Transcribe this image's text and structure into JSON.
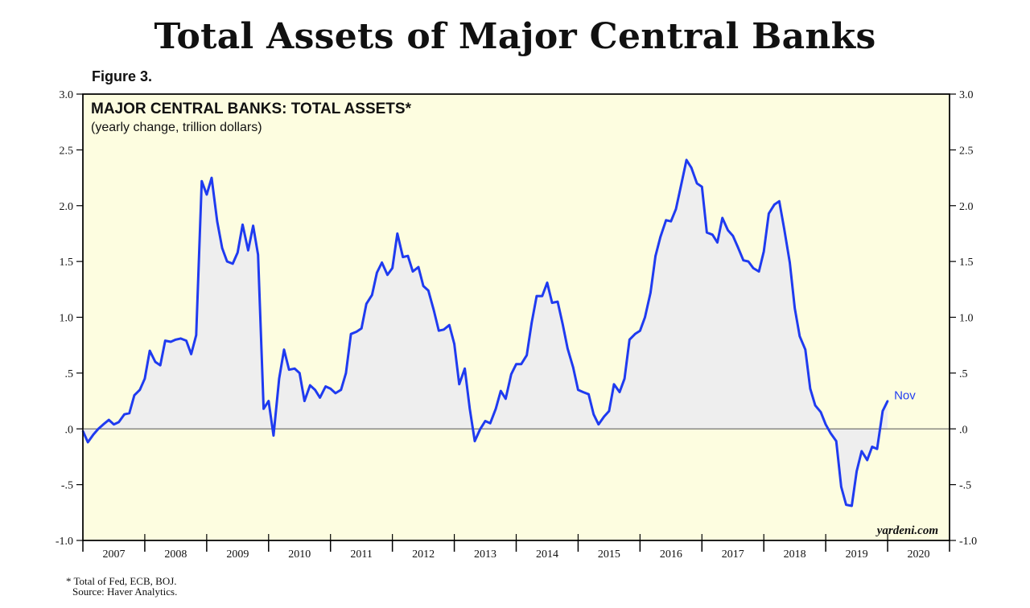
{
  "page_title": "Total Assets of Major Central Banks",
  "figure_label": "Figure 3.",
  "footnotes": {
    "line1": "* Total of Fed, ECB, BOJ.",
    "line2": "Source: Haver Analytics."
  },
  "watermark": "yardeni.com",
  "colors": {
    "plot_background": "#fdfde0",
    "series_line": "#1f3bf0",
    "area_fill": "#eeeeee",
    "zero_line": "#555555"
  },
  "chart_data": {
    "type": "line",
    "title": "MAJOR CENTRAL BANKS: TOTAL ASSETS*",
    "subtitle": "(yearly change, trillion dollars)",
    "xlabel": "",
    "ylabel": "",
    "ylim": [
      -1.0,
      3.0
    ],
    "y_ticks": [
      {
        "value": 3.0,
        "label": "3.0"
      },
      {
        "value": 2.5,
        "label": "2.5"
      },
      {
        "value": 2.0,
        "label": "2.0"
      },
      {
        "value": 1.5,
        "label": "1.5"
      },
      {
        "value": 1.0,
        "label": "1.0"
      },
      {
        "value": 0.5,
        "label": ".5"
      },
      {
        "value": 0.0,
        "label": ".0"
      },
      {
        "value": -0.5,
        "label": "-.5"
      },
      {
        "value": -1.0,
        "label": "-1.0"
      }
    ],
    "xlim": [
      2007.0,
      2021.0
    ],
    "year_labels": [
      "2007",
      "2008",
      "2009",
      "2010",
      "2011",
      "2012",
      "2013",
      "2014",
      "2015",
      "2016",
      "2017",
      "2018",
      "2019",
      "2020"
    ],
    "fill_under": true,
    "grid": false,
    "series": [
      {
        "end_label": "Nov",
        "points": [
          [
            2007.0,
            -0.02
          ],
          [
            2007.08,
            -0.12
          ],
          [
            2007.17,
            -0.05
          ],
          [
            2007.25,
            0.0
          ],
          [
            2007.33,
            0.04
          ],
          [
            2007.42,
            0.08
          ],
          [
            2007.5,
            0.04
          ],
          [
            2007.58,
            0.06
          ],
          [
            2007.67,
            0.13
          ],
          [
            2007.75,
            0.14
          ],
          [
            2007.83,
            0.3
          ],
          [
            2007.92,
            0.35
          ],
          [
            2008.0,
            0.45
          ],
          [
            2008.08,
            0.7
          ],
          [
            2008.17,
            0.6
          ],
          [
            2008.25,
            0.57
          ],
          [
            2008.33,
            0.79
          ],
          [
            2008.42,
            0.78
          ],
          [
            2008.5,
            0.8
          ],
          [
            2008.58,
            0.81
          ],
          [
            2008.67,
            0.79
          ],
          [
            2008.75,
            0.67
          ],
          [
            2008.83,
            0.84
          ],
          [
            2008.92,
            2.22
          ],
          [
            2009.0,
            2.1
          ],
          [
            2009.08,
            2.25
          ],
          [
            2009.17,
            1.86
          ],
          [
            2009.25,
            1.62
          ],
          [
            2009.33,
            1.5
          ],
          [
            2009.42,
            1.48
          ],
          [
            2009.5,
            1.58
          ],
          [
            2009.58,
            1.83
          ],
          [
            2009.67,
            1.6
          ],
          [
            2009.75,
            1.82
          ],
          [
            2009.83,
            1.56
          ],
          [
            2009.92,
            0.18
          ],
          [
            2010.0,
            0.25
          ],
          [
            2010.08,
            -0.06
          ],
          [
            2010.17,
            0.45
          ],
          [
            2010.25,
            0.71
          ],
          [
            2010.33,
            0.53
          ],
          [
            2010.42,
            0.54
          ],
          [
            2010.5,
            0.5
          ],
          [
            2010.58,
            0.25
          ],
          [
            2010.67,
            0.39
          ],
          [
            2010.75,
            0.35
          ],
          [
            2010.83,
            0.28
          ],
          [
            2010.92,
            0.38
          ],
          [
            2011.0,
            0.36
          ],
          [
            2011.08,
            0.32
          ],
          [
            2011.17,
            0.35
          ],
          [
            2011.25,
            0.5
          ],
          [
            2011.33,
            0.85
          ],
          [
            2011.42,
            0.87
          ],
          [
            2011.5,
            0.9
          ],
          [
            2011.58,
            1.12
          ],
          [
            2011.67,
            1.2
          ],
          [
            2011.75,
            1.4
          ],
          [
            2011.83,
            1.49
          ],
          [
            2011.92,
            1.38
          ],
          [
            2012.0,
            1.44
          ],
          [
            2012.08,
            1.75
          ],
          [
            2012.17,
            1.54
          ],
          [
            2012.25,
            1.55
          ],
          [
            2012.33,
            1.41
          ],
          [
            2012.42,
            1.45
          ],
          [
            2012.5,
            1.28
          ],
          [
            2012.58,
            1.24
          ],
          [
            2012.67,
            1.06
          ],
          [
            2012.75,
            0.88
          ],
          [
            2012.83,
            0.89
          ],
          [
            2012.92,
            0.93
          ],
          [
            2013.0,
            0.76
          ],
          [
            2013.08,
            0.4
          ],
          [
            2013.17,
            0.54
          ],
          [
            2013.25,
            0.18
          ],
          [
            2013.33,
            -0.11
          ],
          [
            2013.42,
            0.0
          ],
          [
            2013.5,
            0.07
          ],
          [
            2013.58,
            0.05
          ],
          [
            2013.67,
            0.18
          ],
          [
            2013.75,
            0.34
          ],
          [
            2013.83,
            0.27
          ],
          [
            2013.92,
            0.49
          ],
          [
            2014.0,
            0.58
          ],
          [
            2014.08,
            0.58
          ],
          [
            2014.17,
            0.66
          ],
          [
            2014.25,
            0.95
          ],
          [
            2014.33,
            1.19
          ],
          [
            2014.42,
            1.19
          ],
          [
            2014.5,
            1.31
          ],
          [
            2014.58,
            1.13
          ],
          [
            2014.67,
            1.14
          ],
          [
            2014.75,
            0.94
          ],
          [
            2014.83,
            0.72
          ],
          [
            2014.92,
            0.55
          ],
          [
            2015.0,
            0.35
          ],
          [
            2015.08,
            0.33
          ],
          [
            2015.17,
            0.31
          ],
          [
            2015.25,
            0.13
          ],
          [
            2015.33,
            0.04
          ],
          [
            2015.42,
            0.11
          ],
          [
            2015.5,
            0.16
          ],
          [
            2015.58,
            0.4
          ],
          [
            2015.67,
            0.33
          ],
          [
            2015.75,
            0.45
          ],
          [
            2015.83,
            0.8
          ],
          [
            2015.92,
            0.85
          ],
          [
            2016.0,
            0.88
          ],
          [
            2016.08,
            1.0
          ],
          [
            2016.17,
            1.22
          ],
          [
            2016.25,
            1.55
          ],
          [
            2016.33,
            1.72
          ],
          [
            2016.42,
            1.87
          ],
          [
            2016.5,
            1.86
          ],
          [
            2016.58,
            1.97
          ],
          [
            2016.67,
            2.2
          ],
          [
            2016.75,
            2.41
          ],
          [
            2016.83,
            2.34
          ],
          [
            2016.92,
            2.2
          ],
          [
            2017.0,
            2.17
          ],
          [
            2017.08,
            1.76
          ],
          [
            2017.17,
            1.74
          ],
          [
            2017.25,
            1.67
          ],
          [
            2017.33,
            1.89
          ],
          [
            2017.42,
            1.78
          ],
          [
            2017.5,
            1.73
          ],
          [
            2017.58,
            1.63
          ],
          [
            2017.67,
            1.51
          ],
          [
            2017.75,
            1.5
          ],
          [
            2017.83,
            1.44
          ],
          [
            2017.92,
            1.41
          ],
          [
            2018.0,
            1.59
          ],
          [
            2018.08,
            1.93
          ],
          [
            2018.17,
            2.01
          ],
          [
            2018.25,
            2.04
          ],
          [
            2018.33,
            1.79
          ],
          [
            2018.42,
            1.49
          ],
          [
            2018.5,
            1.08
          ],
          [
            2018.58,
            0.83
          ],
          [
            2018.67,
            0.71
          ],
          [
            2018.75,
            0.36
          ],
          [
            2018.83,
            0.21
          ],
          [
            2018.92,
            0.15
          ],
          [
            2019.0,
            0.04
          ],
          [
            2019.08,
            -0.04
          ],
          [
            2019.17,
            -0.11
          ],
          [
            2019.25,
            -0.52
          ],
          [
            2019.33,
            -0.68
          ],
          [
            2019.42,
            -0.69
          ],
          [
            2019.5,
            -0.38
          ],
          [
            2019.58,
            -0.2
          ],
          [
            2019.67,
            -0.28
          ],
          [
            2019.75,
            -0.16
          ],
          [
            2019.83,
            -0.18
          ],
          [
            2019.92,
            0.16
          ],
          [
            2020.0,
            0.25
          ]
        ]
      }
    ]
  }
}
